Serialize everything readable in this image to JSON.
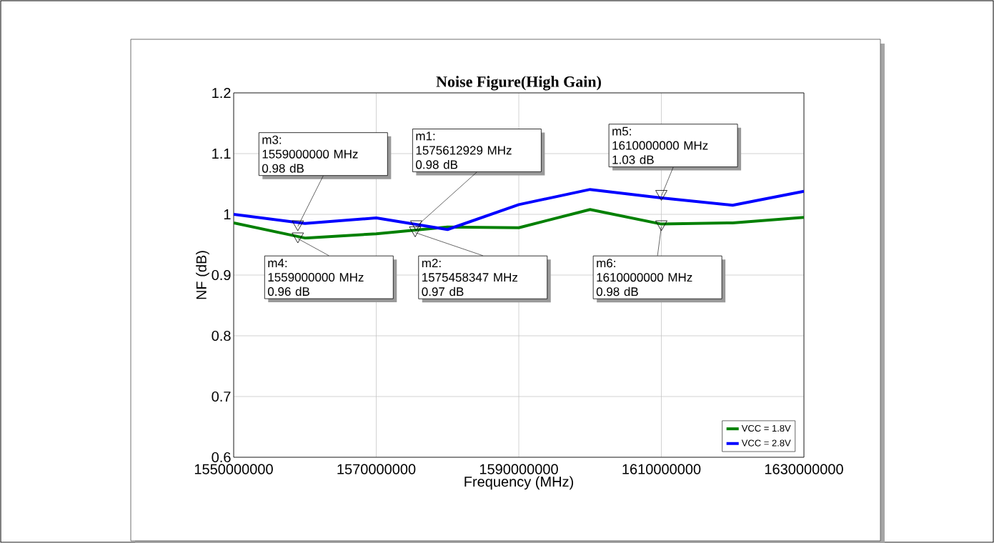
{
  "chart_data": {
    "type": "line",
    "title": "Noise Figure(High Gain)",
    "xlabel": "Frequency (MHz)",
    "ylabel": "NF (dB)",
    "x": [
      1550000000,
      1560000000,
      1570000000,
      1580000000,
      1590000000,
      1600000000,
      1610000000,
      1620000000,
      1630000000
    ],
    "series": [
      {
        "name": "VCC = 1.8V",
        "color": "#008000",
        "values": [
          0.986,
          0.961,
          0.968,
          0.979,
          0.978,
          1.008,
          0.984,
          0.986,
          0.995
        ]
      },
      {
        "name": "VCC = 2.8V",
        "color": "#0000ff",
        "values": [
          1.0,
          0.985,
          0.994,
          0.975,
          1.016,
          1.041,
          1.027,
          1.015,
          1.038
        ]
      }
    ],
    "xlim": [
      1550000000,
      1630000000
    ],
    "xticks": [
      1550000000,
      1570000000,
      1590000000,
      1610000000,
      1630000000
    ],
    "ylim": [
      0.6,
      1.2
    ],
    "yticks": [
      0.6,
      0.7,
      0.8,
      0.9,
      1,
      1.1,
      1.2
    ],
    "grid": true,
    "legend": "bottom right",
    "marker": "none",
    "line_style": "solid",
    "annotations": [
      {
        "text": "m3:\n1559000000 MHz\n0.98 dB",
        "x": 1559000000,
        "y": 0.98
      },
      {
        "text": "m1:\n1575612929 MHz\n0.98 dB",
        "x": 1575612929,
        "y": 0.98
      },
      {
        "text": "m5:\n1610000000 MHz\n1.03 dB",
        "x": 1610000000,
        "y": 1.03
      },
      {
        "text": "m4:\n1559000000 MHz\n0.96 dB",
        "x": 1559000000,
        "y": 0.96
      },
      {
        "text": "m2:\n1575458347 MHz\n0.97 dB",
        "x": 1575458347,
        "y": 0.97
      },
      {
        "text": "m6:\n1610000000 MHz\n0.98 dB",
        "x": 1610000000,
        "y": 0.98
      }
    ]
  }
}
